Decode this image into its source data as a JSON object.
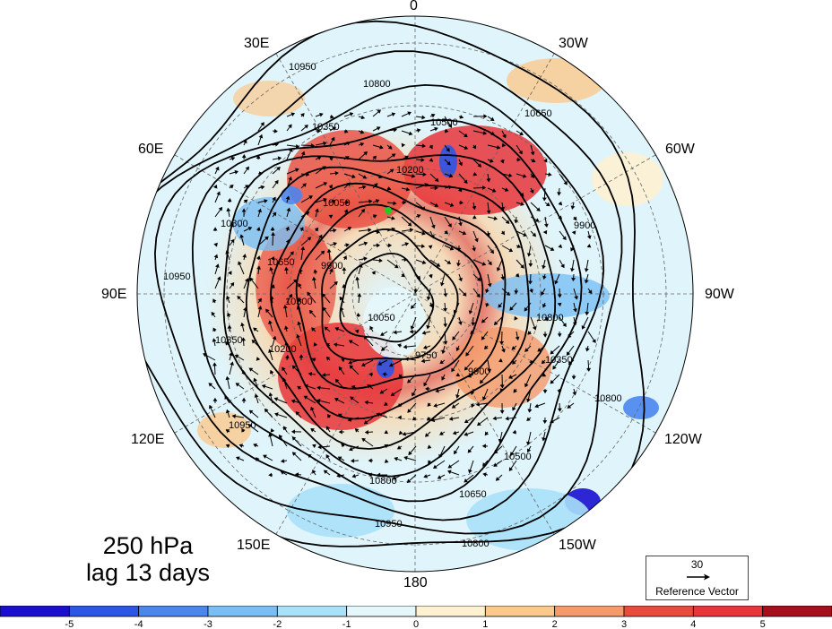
{
  "figure": {
    "title_line1": "250 hPa",
    "title_line2": "lag 13 days"
  },
  "longitude_labels": {
    "top": "0",
    "top_left": "30E",
    "top_right": "30W",
    "upper_left": "60E",
    "upper_right": "60W",
    "left": "90E",
    "right": "90W",
    "lower_left": "120E",
    "lower_right": "120W",
    "bottom_left": "150E",
    "bottom_right": "150W",
    "bottom": "180"
  },
  "reference_vector": {
    "magnitude": "30",
    "caption": "Reference Vector"
  },
  "colorbar": {
    "tick_labels": [
      "-5",
      "-4",
      "-3",
      "-2",
      "-1",
      "0",
      "1",
      "2",
      "3",
      "4",
      "5"
    ],
    "colors": [
      "#1a0fd0",
      "#2a55e6",
      "#4a86ee",
      "#79bff5",
      "#a9e1f8",
      "#e4f7fb",
      "#fdf1d2",
      "#fbc98c",
      "#f59a6a",
      "#ea4a3c",
      "#e8343a",
      "#a50e1a"
    ]
  },
  "contour_labels": [
    "10950",
    "10800",
    "10650",
    "10500",
    "10350",
    "10200",
    "10050",
    "9900",
    "9750",
    "10950",
    "10800",
    "10650",
    "10500",
    "10350",
    "10200",
    "10050",
    "9900",
    "10800",
    "10950",
    "10800",
    "10650",
    "10500",
    "10350",
    "9900",
    "10800",
    "10950",
    "10800"
  ]
}
